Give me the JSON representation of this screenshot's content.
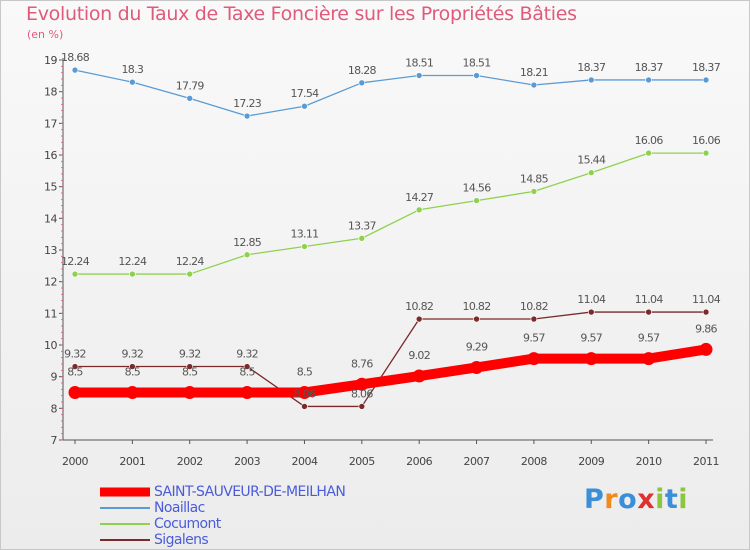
{
  "chart_data": {
    "type": "line",
    "title": "Evolution du Taux de Taxe Foncière sur les Propriétés Bâties",
    "ylabel": "(en %)",
    "xlabel": "",
    "x": [
      "2000",
      "2001",
      "2002",
      "2003",
      "2004",
      "2005",
      "2006",
      "2007",
      "2008",
      "2009",
      "2010",
      "2011"
    ],
    "ylim": [
      7,
      19
    ],
    "yticks": [
      7,
      8,
      9,
      10,
      11,
      12,
      13,
      14,
      15,
      16,
      17,
      18,
      19
    ],
    "grid": false,
    "legend_placement": "bottom-left",
    "series": [
      {
        "name": "SAINT-SAUVEUR-DE-MEILHAN",
        "color": "#ff0000",
        "values": [
          8.5,
          8.5,
          8.5,
          8.5,
          8.5,
          8.76,
          9.02,
          9.29,
          9.57,
          9.57,
          9.57,
          9.86
        ],
        "labels": [
          "8.5",
          "8.5",
          "8.5",
          "8.5",
          "8.5",
          "8.76",
          "9.02",
          "9.29",
          "9.57",
          "9.57",
          "9.57",
          "9.86"
        ],
        "emphasis": true
      },
      {
        "name": "Noaillac",
        "color": "#5b9bd5",
        "values": [
          18.68,
          18.3,
          17.79,
          17.23,
          17.54,
          18.28,
          18.51,
          18.51,
          18.21,
          18.37,
          18.37,
          18.37
        ],
        "labels": [
          "18.68",
          "18.3",
          "17.79",
          "17.23",
          "17.54",
          "18.28",
          "18.51",
          "18.51",
          "18.21",
          "18.37",
          "18.37",
          "18.37"
        ]
      },
      {
        "name": "Cocumont",
        "color": "#8fd14f",
        "values": [
          12.24,
          12.24,
          12.24,
          12.85,
          13.11,
          13.37,
          14.27,
          14.56,
          14.85,
          15.44,
          16.06,
          16.06
        ],
        "labels": [
          "12.24",
          "12.24",
          "12.24",
          "12.85",
          "13.11",
          "13.37",
          "14.27",
          "14.56",
          "14.85",
          "15.44",
          "16.06",
          "16.06"
        ]
      },
      {
        "name": "Sigalens",
        "color": "#7a2a2a",
        "values": [
          9.32,
          9.32,
          9.32,
          9.32,
          8.06,
          8.06,
          10.82,
          10.82,
          10.82,
          11.04,
          11.04,
          11.04
        ],
        "labels": [
          "9.32",
          "9.32",
          "9.32",
          "9.32",
          "8.06",
          "8.06",
          "10.82",
          "10.82",
          "10.82",
          "11.04",
          "11.04",
          "11.04"
        ]
      }
    ]
  },
  "logo": {
    "text": "Proxiti",
    "letters": [
      "P",
      "r",
      "o",
      "x",
      "i",
      "t",
      "i"
    ],
    "colors": [
      "#3a8fd8",
      "#f08a1c",
      "#3a8fd8",
      "#e03030",
      "#8cc63f",
      "#3a8fd8",
      "#8cc63f"
    ]
  }
}
